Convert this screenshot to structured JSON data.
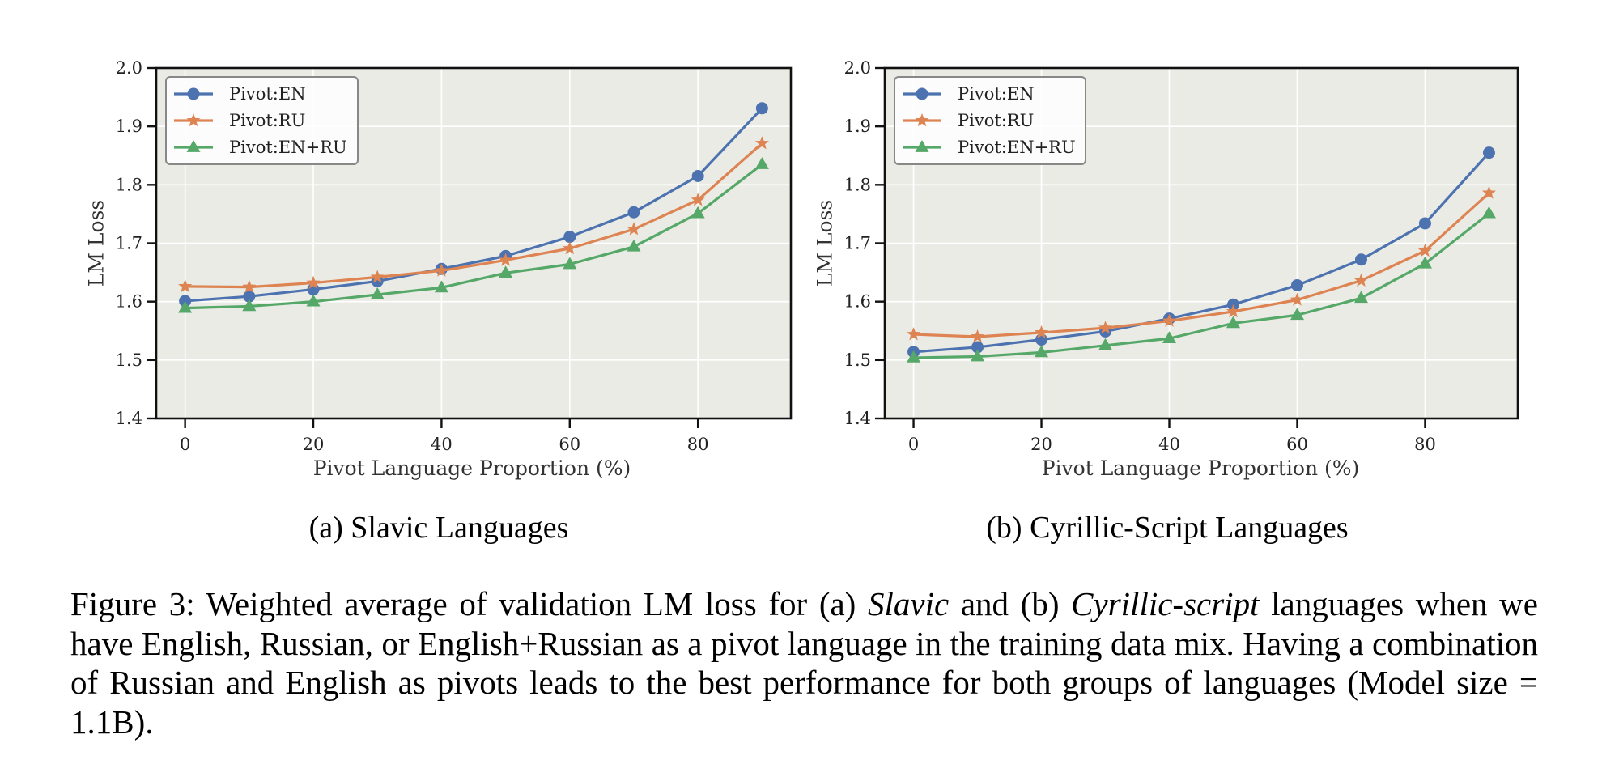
{
  "figure": {
    "caption_parts": [
      {
        "text": "Figure 3: Weighted average of validation LM loss for (a) ",
        "italic": false
      },
      {
        "text": "Slavic",
        "italic": true
      },
      {
        "text": " and (b) ",
        "italic": false
      },
      {
        "text": "Cyrillic-script",
        "italic": true
      },
      {
        "text": " languages when we have English, Russian, or English+Russian as a pivot language in the training data mix. Having a combination of Russian and English as pivots leads to the best performance for both groups of languages (Model size = 1.1B).",
        "italic": false
      }
    ]
  },
  "colors": {
    "Pivot:EN": "#4c72b0",
    "Pivot:RU": "#dd8452",
    "Pivot:EN+RU": "#55a868",
    "plot_bg": "#ebebe6",
    "grid": "#ffffff"
  },
  "chart_data": [
    {
      "type": "line",
      "subcaption": "(a) Slavic Languages",
      "title": "",
      "xlabel": "Pivot Language Proportion (%)",
      "ylabel": "LM Loss",
      "xlim": [
        -4.5,
        94.5
      ],
      "ylim": [
        1.4,
        2.0
      ],
      "xticks": [
        0,
        20,
        40,
        60,
        80
      ],
      "xtick_labels": [
        "0",
        "20",
        "40",
        "60",
        "80"
      ],
      "yticks": [
        1.4,
        1.5,
        1.6,
        1.7,
        1.8,
        1.9,
        2.0
      ],
      "ytick_labels": [
        "1.4",
        "1.5",
        "1.6",
        "1.7",
        "1.8",
        "1.9",
        "2.0"
      ],
      "grid": true,
      "legend_position": "top-left",
      "x": [
        0,
        10,
        20,
        30,
        40,
        50,
        60,
        70,
        80,
        90
      ],
      "series": [
        {
          "name": "Pivot:EN",
          "marker": "circle",
          "values": [
            1.601,
            1.609,
            1.621,
            1.635,
            1.656,
            1.678,
            1.711,
            1.753,
            1.815,
            1.931
          ]
        },
        {
          "name": "Pivot:RU",
          "marker": "star",
          "values": [
            1.626,
            1.625,
            1.632,
            1.642,
            1.653,
            1.671,
            1.691,
            1.724,
            1.774,
            1.871
          ]
        },
        {
          "name": "Pivot:EN+RU",
          "marker": "triangle",
          "values": [
            1.589,
            1.592,
            1.6,
            1.612,
            1.624,
            1.649,
            1.664,
            1.694,
            1.751,
            1.835
          ]
        }
      ]
    },
    {
      "type": "line",
      "subcaption": "(b) Cyrillic-Script Languages",
      "title": "",
      "xlabel": "Pivot Language Proportion (%)",
      "ylabel": "LM Loss",
      "xlim": [
        -4.5,
        94.5
      ],
      "ylim": [
        1.4,
        2.0
      ],
      "xticks": [
        0,
        20,
        40,
        60,
        80
      ],
      "xtick_labels": [
        "0",
        "20",
        "40",
        "60",
        "80"
      ],
      "yticks": [
        1.4,
        1.5,
        1.6,
        1.7,
        1.8,
        1.9,
        2.0
      ],
      "ytick_labels": [
        "1.4",
        "1.5",
        "1.6",
        "1.7",
        "1.8",
        "1.9",
        "2.0"
      ],
      "grid": true,
      "legend_position": "top-left",
      "x": [
        0,
        10,
        20,
        30,
        40,
        50,
        60,
        70,
        80,
        90
      ],
      "series": [
        {
          "name": "Pivot:EN",
          "marker": "circle",
          "values": [
            1.514,
            1.522,
            1.535,
            1.549,
            1.571,
            1.595,
            1.628,
            1.672,
            1.734,
            1.855
          ]
        },
        {
          "name": "Pivot:RU",
          "marker": "star",
          "values": [
            1.544,
            1.54,
            1.547,
            1.555,
            1.567,
            1.583,
            1.603,
            1.636,
            1.687,
            1.786
          ]
        },
        {
          "name": "Pivot:EN+RU",
          "marker": "triangle",
          "values": [
            1.504,
            1.506,
            1.513,
            1.525,
            1.537,
            1.563,
            1.577,
            1.606,
            1.665,
            1.751
          ]
        }
      ]
    }
  ]
}
